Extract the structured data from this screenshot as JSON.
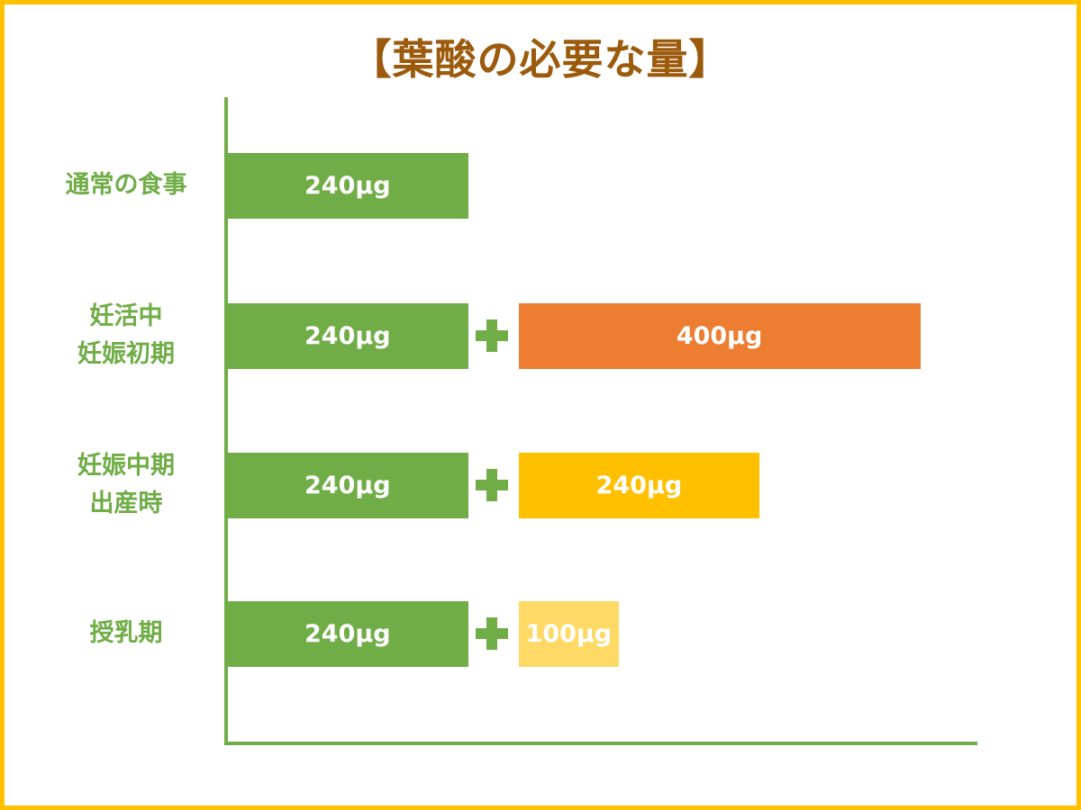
{
  "chart_data": {
    "type": "bar",
    "stacked": true,
    "orientation": "horizontal",
    "title": "【葉酸の必要な量】",
    "categories": [
      "通常の食事",
      "妊活中\n妊娠初期",
      "妊娠中期\n出産時",
      "授乳期"
    ],
    "series": [
      {
        "values": [
          240,
          240,
          240,
          240
        ],
        "labels": [
          "240μg",
          "240μg",
          "240μg",
          "240μg"
        ],
        "color": "#70AD47"
      },
      {
        "values": [
          0,
          400,
          240,
          100
        ],
        "labels": [
          "",
          "400μg",
          "240μg",
          "100μg"
        ],
        "colors": [
          "",
          "#ED7D31",
          "#FFC000",
          "#FFD966"
        ]
      }
    ],
    "separator_icon": "plus-icon",
    "grid": false,
    "legend": "none",
    "axis_color": "#70AD47",
    "title_color": "#9C5B0C",
    "frame_color": "#FFC000"
  }
}
